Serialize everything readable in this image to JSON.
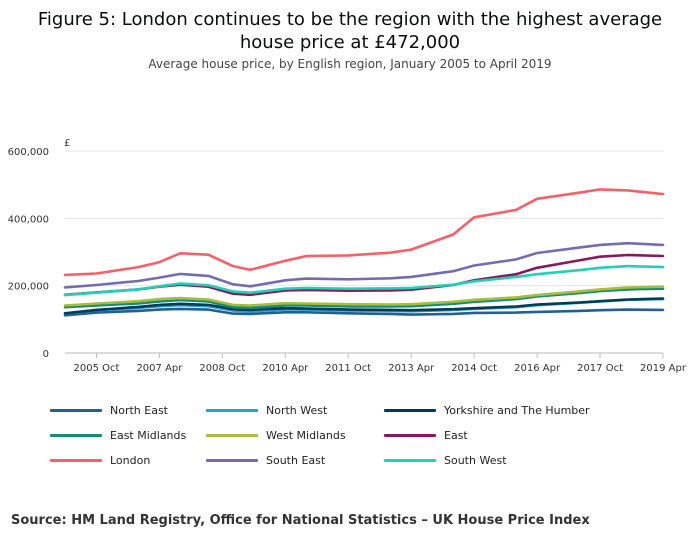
{
  "header": {
    "title": "Figure 5: London continues to be the region with the highest average house price at £472,000",
    "subtitle": "Average house price, by English region, January 2005 to April 2019"
  },
  "source": "Source: HM Land Registry, Office for National Statistics – UK House Price Index",
  "chart_data": {
    "type": "line",
    "title": "Figure 5: London continues to be the region with the highest average house price at £472,000",
    "subtitle": "Average house price, by English region, January 2005 to April 2019",
    "ylabel": "£",
    "xlabel": "",
    "ylim": [
      0,
      600000
    ],
    "xlim": [
      "2005-01",
      "2019-04"
    ],
    "y_ticks": [
      0,
      200000,
      400000,
      600000
    ],
    "y_tick_labels": [
      "0",
      "200,000",
      "400,000",
      "600,000"
    ],
    "x_tick_dates": [
      "2005-10",
      "2007-04",
      "2008-10",
      "2010-04",
      "2011-10",
      "2013-04",
      "2014-10",
      "2016-04",
      "2017-10",
      "2019-04"
    ],
    "x_tick_labels": [
      "2005 Oct",
      "2007 Apr",
      "2008 Oct",
      "2010 Apr",
      "2011 Oct",
      "2013 Apr",
      "2014 Oct",
      "2016 Apr",
      "2017 Oct",
      "2019 Apr"
    ],
    "grid": "horizontal",
    "legend_position": "bottom",
    "series": [
      {
        "name": "North East",
        "color": "#206095",
        "points": [
          [
            "2005-01",
            112000
          ],
          [
            "2005-10",
            120000
          ],
          [
            "2006-10",
            125000
          ],
          [
            "2007-04",
            129000
          ],
          [
            "2007-10",
            131000
          ],
          [
            "2008-06",
            129000
          ],
          [
            "2009-01",
            117000
          ],
          [
            "2009-06",
            116000
          ],
          [
            "2010-04",
            121000
          ],
          [
            "2010-10",
            121000
          ],
          [
            "2011-10",
            118000
          ],
          [
            "2012-10",
            116000
          ],
          [
            "2013-04",
            114000
          ],
          [
            "2014-04",
            116000
          ],
          [
            "2014-10",
            119000
          ],
          [
            "2015-10",
            120000
          ],
          [
            "2016-04",
            122000
          ],
          [
            "2017-04",
            125000
          ],
          [
            "2017-10",
            127000
          ],
          [
            "2018-06",
            129000
          ],
          [
            "2019-04",
            128000
          ]
        ]
      },
      {
        "name": "North West",
        "color": "#27a0cc",
        "points": [
          [
            "2005-01",
            117000
          ],
          [
            "2005-10",
            127000
          ],
          [
            "2006-10",
            134000
          ],
          [
            "2007-04",
            139000
          ],
          [
            "2007-10",
            142000
          ],
          [
            "2008-06",
            139000
          ],
          [
            "2009-01",
            126000
          ],
          [
            "2009-06",
            124000
          ],
          [
            "2010-04",
            129000
          ],
          [
            "2010-10",
            129000
          ],
          [
            "2011-10",
            126000
          ],
          [
            "2012-10",
            125000
          ],
          [
            "2013-04",
            124000
          ],
          [
            "2014-04",
            128000
          ],
          [
            "2014-10",
            131000
          ],
          [
            "2015-10",
            136000
          ],
          [
            "2016-04",
            142000
          ],
          [
            "2017-04",
            149000
          ],
          [
            "2017-10",
            153000
          ],
          [
            "2018-06",
            158000
          ],
          [
            "2019-04",
            160000
          ]
        ]
      },
      {
        "name": "Yorkshire and The Humber",
        "color": "#003c57",
        "points": [
          [
            "2005-01",
            118000
          ],
          [
            "2005-10",
            128000
          ],
          [
            "2006-10",
            137000
          ],
          [
            "2007-04",
            143000
          ],
          [
            "2007-10",
            146000
          ],
          [
            "2008-06",
            143000
          ],
          [
            "2009-01",
            130000
          ],
          [
            "2009-06",
            128000
          ],
          [
            "2010-04",
            133000
          ],
          [
            "2010-10",
            132000
          ],
          [
            "2011-10",
            129000
          ],
          [
            "2012-10",
            128000
          ],
          [
            "2013-04",
            127000
          ],
          [
            "2014-04",
            130000
          ],
          [
            "2014-10",
            133000
          ],
          [
            "2015-10",
            138000
          ],
          [
            "2016-04",
            144000
          ],
          [
            "2017-04",
            150000
          ],
          [
            "2017-10",
            154000
          ],
          [
            "2018-06",
            159000
          ],
          [
            "2019-04",
            162000
          ]
        ]
      },
      {
        "name": "East Midlands",
        "color": "#118c7b",
        "points": [
          [
            "2005-01",
            136000
          ],
          [
            "2005-10",
            141000
          ],
          [
            "2006-10",
            147000
          ],
          [
            "2007-04",
            153000
          ],
          [
            "2007-10",
            157000
          ],
          [
            "2008-06",
            153000
          ],
          [
            "2009-01",
            136000
          ],
          [
            "2009-06",
            134000
          ],
          [
            "2010-04",
            141000
          ],
          [
            "2010-10",
            141000
          ],
          [
            "2011-10",
            138000
          ],
          [
            "2012-10",
            138000
          ],
          [
            "2013-04",
            139000
          ],
          [
            "2014-04",
            146000
          ],
          [
            "2014-10",
            152000
          ],
          [
            "2015-10",
            160000
          ],
          [
            "2016-04",
            168000
          ],
          [
            "2017-04",
            178000
          ],
          [
            "2017-10",
            184000
          ],
          [
            "2018-06",
            189000
          ],
          [
            "2019-04",
            191000
          ]
        ]
      },
      {
        "name": "West Midlands",
        "color": "#a8bd3a",
        "points": [
          [
            "2005-01",
            141000
          ],
          [
            "2005-10",
            147000
          ],
          [
            "2006-10",
            154000
          ],
          [
            "2007-04",
            160000
          ],
          [
            "2007-10",
            163000
          ],
          [
            "2008-06",
            159000
          ],
          [
            "2009-01",
            143000
          ],
          [
            "2009-06",
            141000
          ],
          [
            "2010-04",
            148000
          ],
          [
            "2010-10",
            147000
          ],
          [
            "2011-10",
            145000
          ],
          [
            "2012-10",
            144000
          ],
          [
            "2013-04",
            145000
          ],
          [
            "2014-04",
            152000
          ],
          [
            "2014-10",
            158000
          ],
          [
            "2015-10",
            165000
          ],
          [
            "2016-04",
            172000
          ],
          [
            "2017-04",
            183000
          ],
          [
            "2017-10",
            189000
          ],
          [
            "2018-06",
            195000
          ],
          [
            "2019-04",
            197000
          ]
        ]
      },
      {
        "name": "East",
        "color": "#871a5b",
        "points": [
          [
            "2005-01",
            173000
          ],
          [
            "2005-10",
            180000
          ],
          [
            "2006-10",
            189000
          ],
          [
            "2007-04",
            197000
          ],
          [
            "2007-10",
            203000
          ],
          [
            "2008-06",
            197000
          ],
          [
            "2009-01",
            176000
          ],
          [
            "2009-06",
            173000
          ],
          [
            "2010-04",
            186000
          ],
          [
            "2010-10",
            187000
          ],
          [
            "2011-10",
            185000
          ],
          [
            "2012-10",
            186000
          ],
          [
            "2013-04",
            188000
          ],
          [
            "2014-04",
            202000
          ],
          [
            "2014-10",
            216000
          ],
          [
            "2015-10",
            234000
          ],
          [
            "2016-04",
            253000
          ],
          [
            "2017-04",
            275000
          ],
          [
            "2017-10",
            286000
          ],
          [
            "2018-06",
            291000
          ],
          [
            "2019-04",
            288000
          ]
        ]
      },
      {
        "name": "London",
        "color": "#f66068",
        "points": [
          [
            "2005-01",
            232000
          ],
          [
            "2005-10",
            236000
          ],
          [
            "2006-10",
            255000
          ],
          [
            "2007-04",
            270000
          ],
          [
            "2007-10",
            296000
          ],
          [
            "2008-06",
            292000
          ],
          [
            "2009-01",
            258000
          ],
          [
            "2009-06",
            247000
          ],
          [
            "2010-04",
            274000
          ],
          [
            "2010-10",
            288000
          ],
          [
            "2011-10",
            290000
          ],
          [
            "2012-10",
            298000
          ],
          [
            "2013-04",
            307000
          ],
          [
            "2014-04",
            352000
          ],
          [
            "2014-10",
            403000
          ],
          [
            "2015-10",
            425000
          ],
          [
            "2016-04",
            458000
          ],
          [
            "2017-04",
            476000
          ],
          [
            "2017-10",
            486000
          ],
          [
            "2018-06",
            483000
          ],
          [
            "2019-04",
            472000
          ]
        ]
      },
      {
        "name": "South East",
        "color": "#746cb1",
        "points": [
          [
            "2005-01",
            195000
          ],
          [
            "2005-10",
            202000
          ],
          [
            "2006-10",
            214000
          ],
          [
            "2007-04",
            224000
          ],
          [
            "2007-10",
            235000
          ],
          [
            "2008-06",
            229000
          ],
          [
            "2009-01",
            204000
          ],
          [
            "2009-06",
            198000
          ],
          [
            "2010-04",
            216000
          ],
          [
            "2010-10",
            221000
          ],
          [
            "2011-10",
            219000
          ],
          [
            "2012-10",
            222000
          ],
          [
            "2013-04",
            226000
          ],
          [
            "2014-04",
            243000
          ],
          [
            "2014-10",
            260000
          ],
          [
            "2015-10",
            278000
          ],
          [
            "2016-04",
            297000
          ],
          [
            "2017-04",
            313000
          ],
          [
            "2017-10",
            321000
          ],
          [
            "2018-06",
            326000
          ],
          [
            "2019-04",
            321000
          ]
        ]
      },
      {
        "name": "South West",
        "color": "#22d0b6",
        "points": [
          [
            "2005-01",
            172000
          ],
          [
            "2005-10",
            179000
          ],
          [
            "2006-10",
            189000
          ],
          [
            "2007-04",
            198000
          ],
          [
            "2007-10",
            206000
          ],
          [
            "2008-06",
            201000
          ],
          [
            "2009-01",
            183000
          ],
          [
            "2009-06",
            179000
          ],
          [
            "2010-04",
            191000
          ],
          [
            "2010-10",
            193000
          ],
          [
            "2011-10",
            191000
          ],
          [
            "2012-10",
            192000
          ],
          [
            "2013-04",
            193000
          ],
          [
            "2014-04",
            203000
          ],
          [
            "2014-10",
            213000
          ],
          [
            "2015-10",
            226000
          ],
          [
            "2016-04",
            234000
          ],
          [
            "2017-04",
            246000
          ],
          [
            "2017-10",
            253000
          ],
          [
            "2018-06",
            258000
          ],
          [
            "2019-04",
            255000
          ]
        ]
      }
    ]
  }
}
